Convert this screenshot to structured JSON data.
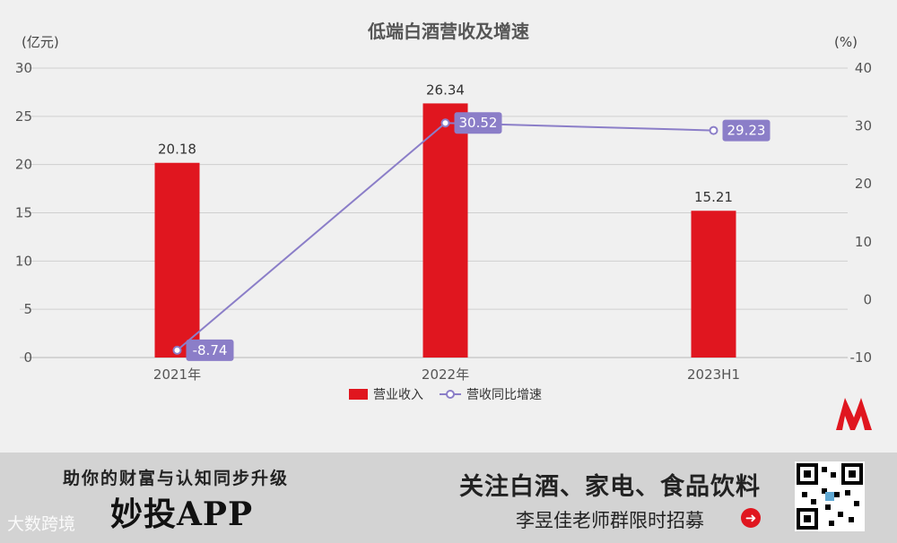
{
  "chart_data": {
    "type": "bar+line",
    "title": "低端白酒营收及增速",
    "categories": [
      "2021年",
      "2022年",
      "2023H1"
    ],
    "left_axis": {
      "unit": "(亿元)",
      "ylim": [
        0,
        30
      ],
      "ticks": [
        0,
        5,
        10,
        15,
        20,
        25,
        30
      ]
    },
    "right_axis": {
      "unit": "(%)",
      "ylim": [
        -10,
        40
      ],
      "ticks": [
        -10,
        0,
        10,
        20,
        30,
        40
      ]
    },
    "grid": true,
    "legend_position": "bottom",
    "series": [
      {
        "name": "营业收入",
        "type": "bar",
        "axis": "left",
        "color": "#e0161f",
        "values": [
          20.18,
          26.34,
          15.21
        ]
      },
      {
        "name": "营收同比增速",
        "type": "line",
        "axis": "right",
        "color": "#8b7ec8",
        "values": [
          -8.74,
          30.52,
          29.23
        ]
      }
    ]
  },
  "banner": {
    "tagline": "助你的财富与认知同步升级",
    "app_name": "妙投APP",
    "focus": "关注白酒、家电、食品饮料",
    "recruit": "李昱佳老师群限时招募",
    "watermark": "大数跨境",
    "arrow_icon": "arrow-right-circle-icon"
  }
}
